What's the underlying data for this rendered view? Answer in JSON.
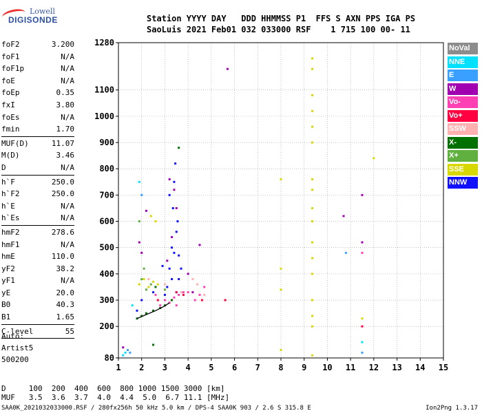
{
  "logo": {
    "line1": "Lowell",
    "line2": "DIGISONDE"
  },
  "header": {
    "line1": "Station YYYY DAY   DDD HHMMSS P1  FFS S AXN PPS IGA PS",
    "line2": "SaoLuis 2021 Feb01 032 033000 RSF    1 715 100 00- 11"
  },
  "params": [
    {
      "label": "foF2",
      "value": "3.200"
    },
    {
      "label": "foF1",
      "value": "N/A"
    },
    {
      "label": "foF1p",
      "value": "N/A"
    },
    {
      "label": "foE",
      "value": "N/A"
    },
    {
      "label": "foEp",
      "value": "0.35"
    },
    {
      "label": "fxI",
      "value": "3.80"
    },
    {
      "label": "foEs",
      "value": "N/A"
    },
    {
      "label": "fmin",
      "value": "1.70",
      "sep": true
    },
    {
      "label": "MUF(D)",
      "value": "11.07"
    },
    {
      "label": "M(D)",
      "value": "3.46"
    },
    {
      "label": "D",
      "value": "N/A",
      "sep": true
    },
    {
      "label": "h`F",
      "value": "250.0"
    },
    {
      "label": "h`F2",
      "value": "250.0"
    },
    {
      "label": "h`E",
      "value": "N/A"
    },
    {
      "label": "h`Es",
      "value": "N/A",
      "sep": true
    },
    {
      "label": "hmF2",
      "value": "278.6"
    },
    {
      "label": "hmF1",
      "value": "N/A"
    },
    {
      "label": "hmE",
      "value": "110.0"
    },
    {
      "label": "yF2",
      "value": "38.2"
    },
    {
      "label": "yF1",
      "value": "N/A"
    },
    {
      "label": "yE",
      "value": "20.0"
    },
    {
      "label": "B0",
      "value": "40.3"
    },
    {
      "label": "B1",
      "value": "1.65",
      "sep": true
    },
    {
      "label": "C-level",
      "value": "55",
      "sep": true
    }
  ],
  "auto": [
    "Auto:",
    "Artist5",
    "500200"
  ],
  "legend": [
    {
      "name": "NoVal",
      "color": "#8c8c8c"
    },
    {
      "name": "NNE",
      "color": "#00e0ff"
    },
    {
      "name": "E",
      "color": "#3aa0ff"
    },
    {
      "name": "W",
      "color": "#a000b0"
    },
    {
      "name": "Vo-",
      "color": "#ff3fb4"
    },
    {
      "name": "Vo+",
      "color": "#ff0040"
    },
    {
      "name": "SSW",
      "color": "#ffb0b0"
    },
    {
      "name": "X-",
      "color": "#007000"
    },
    {
      "name": "X+",
      "color": "#60b040"
    },
    {
      "name": "SSE",
      "color": "#d8d800"
    },
    {
      "name": "NNW",
      "color": "#1010ff"
    }
  ],
  "bottom": {
    "line1": "D     100  200  400  600  800 1000 1500 3000 [km]",
    "line2": "MUF   3.5  3.6  3.7  4.0  4.4  5.0  6.7 11.1 [MHz]"
  },
  "footer": {
    "left": "SAA0K_2021032033000.RSF / 280fx256h 50 kHz 5.0 km / DPS-4 SAA0K 903 / 2.6 S 315.8 E",
    "right": "Ion2Png 1.3.17"
  },
  "chart_data": {
    "type": "scatter",
    "xlim": [
      1,
      15
    ],
    "ylim": [
      80,
      1280
    ],
    "x_ticks": [
      1,
      2,
      3,
      4,
      5,
      6,
      7,
      8,
      9,
      10,
      11,
      12,
      13,
      14,
      15
    ],
    "y_ticks": [
      80,
      200,
      300,
      400,
      500,
      600,
      700,
      800,
      900,
      1000,
      1100,
      1280
    ],
    "grid": true,
    "series": [
      {
        "name": "NNW",
        "color": "#1010ff",
        "points": [
          [
            3.1,
            350
          ],
          [
            3.2,
            420
          ],
          [
            3.3,
            500
          ],
          [
            3.35,
            650
          ],
          [
            3.4,
            750
          ],
          [
            3.45,
            820
          ],
          [
            3.5,
            560
          ],
          [
            3.6,
            470
          ],
          [
            3.7,
            420
          ],
          [
            3.3,
            380
          ],
          [
            3.5,
            330
          ],
          [
            2.0,
            300
          ],
          [
            2.5,
            330
          ],
          [
            1.8,
            260
          ],
          [
            3.55,
            600
          ],
          [
            3.2,
            700
          ],
          [
            3.6,
            380
          ],
          [
            3.0,
            320
          ],
          [
            2.9,
            430
          ],
          [
            3.4,
            480
          ]
        ]
      },
      {
        "name": "W",
        "color": "#a000b0",
        "points": [
          [
            1.9,
            520
          ],
          [
            2.0,
            480
          ],
          [
            3.2,
            760
          ],
          [
            3.3,
            540
          ],
          [
            3.4,
            720
          ],
          [
            3.5,
            650
          ],
          [
            4.0,
            400
          ],
          [
            4.5,
            510
          ],
          [
            5.7,
            1180
          ],
          [
            10.7,
            620
          ],
          [
            11.5,
            700
          ],
          [
            11.5,
            520
          ],
          [
            3.1,
            450
          ],
          [
            2.2,
            640
          ],
          [
            4.2,
            330
          ],
          [
            1.2,
            120
          ]
        ]
      },
      {
        "name": "Vo-",
        "color": "#ff3fb4",
        "points": [
          [
            3.0,
            300
          ],
          [
            3.2,
            290
          ],
          [
            3.4,
            310
          ],
          [
            3.6,
            320
          ],
          [
            3.8,
            330
          ],
          [
            4.0,
            330
          ],
          [
            4.5,
            320
          ],
          [
            4.7,
            350
          ],
          [
            2.8,
            280
          ],
          [
            2.6,
            320
          ],
          [
            3.5,
            280
          ],
          [
            4.3,
            300
          ],
          [
            11.5,
            480
          ]
        ]
      },
      {
        "name": "Vo+",
        "color": "#ff0040",
        "points": [
          [
            3.3,
            300
          ],
          [
            3.5,
            330
          ],
          [
            3.8,
            320
          ],
          [
            4.6,
            300
          ],
          [
            5.6,
            300
          ],
          [
            11.5,
            200
          ],
          [
            2.7,
            300
          ]
        ]
      },
      {
        "name": "SSW",
        "color": "#ffb0b0",
        "points": [
          [
            2.3,
            380
          ],
          [
            3.7,
            330
          ],
          [
            4.4,
            360
          ],
          [
            4.7,
            320
          ],
          [
            4.2,
            380
          ],
          [
            3.0,
            360
          ]
        ]
      },
      {
        "name": "X-",
        "color": "#007000",
        "points": [
          [
            1.8,
            230
          ],
          [
            2.0,
            240
          ],
          [
            2.2,
            250
          ],
          [
            2.5,
            260
          ],
          [
            2.8,
            270
          ],
          [
            3.0,
            280
          ],
          [
            2.6,
            350
          ],
          [
            3.6,
            880
          ],
          [
            2.5,
            130
          ],
          [
            3.3,
            300
          ]
        ]
      },
      {
        "name": "X+",
        "color": "#60b040",
        "points": [
          [
            2.2,
            340
          ],
          [
            2.4,
            360
          ],
          [
            2.0,
            380
          ],
          [
            1.9,
            600
          ],
          [
            2.1,
            420
          ],
          [
            3.0,
            340
          ]
        ]
      },
      {
        "name": "SSE",
        "color": "#d8d800",
        "points": [
          [
            1.9,
            360
          ],
          [
            2.1,
            380
          ],
          [
            2.3,
            350
          ],
          [
            2.5,
            370
          ],
          [
            2.7,
            360
          ],
          [
            2.4,
            620
          ],
          [
            2.6,
            600
          ],
          [
            8.0,
            760
          ],
          [
            8.0,
            420
          ],
          [
            8.0,
            340
          ],
          [
            8.0,
            110
          ],
          [
            9.35,
            1220
          ],
          [
            9.35,
            1180
          ],
          [
            9.35,
            1080
          ],
          [
            9.35,
            1020
          ],
          [
            9.35,
            960
          ],
          [
            9.35,
            900
          ],
          [
            9.35,
            760
          ],
          [
            9.35,
            720
          ],
          [
            9.35,
            650
          ],
          [
            9.35,
            600
          ],
          [
            9.35,
            520
          ],
          [
            9.35,
            460
          ],
          [
            9.35,
            400
          ],
          [
            9.35,
            300
          ],
          [
            9.35,
            240
          ],
          [
            9.35,
            200
          ],
          [
            9.35,
            90
          ],
          [
            12.0,
            840
          ],
          [
            11.5,
            230
          ]
        ]
      },
      {
        "name": "NNE",
        "color": "#00e0ff",
        "points": [
          [
            1.2,
            90
          ],
          [
            1.3,
            100
          ],
          [
            11.5,
            140
          ],
          [
            1.9,
            750
          ],
          [
            1.6,
            280
          ]
        ]
      },
      {
        "name": "E",
        "color": "#3aa0ff",
        "points": [
          [
            1.5,
            100
          ],
          [
            1.4,
            110
          ],
          [
            10.8,
            480
          ],
          [
            11.5,
            100
          ],
          [
            2.0,
            700
          ]
        ]
      }
    ],
    "trace": {
      "color": "#000000",
      "points": [
        [
          1.8,
          230
        ],
        [
          2.2,
          245
        ],
        [
          2.6,
          260
        ],
        [
          3.0,
          278
        ],
        [
          3.2,
          290
        ]
      ]
    }
  }
}
